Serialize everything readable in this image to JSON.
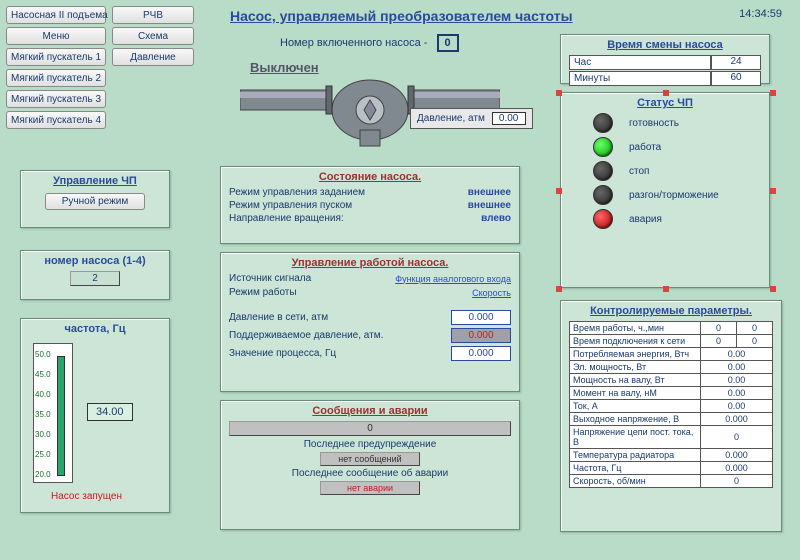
{
  "title": "Насос, управляемый преобразователем частоты",
  "time": "14:34:59",
  "nav1": [
    "Насосная II подъема",
    "Меню",
    "Мягкий пускатель 1",
    "Мягкий пускатель 2",
    "Мягкий пускатель 3",
    "Мягкий пускатель 4"
  ],
  "nav2": [
    "РЧВ",
    "Схема",
    "Давление"
  ],
  "pump_number_label": "Номер включенного насоса -",
  "pump_number": "0",
  "status_word": "Выключен",
  "pressure_label": "Давление, атм",
  "pressure_value": "0.00",
  "ctrl_panel": {
    "title": "Управление ЧП",
    "button": "Ручной режим"
  },
  "num_panel": {
    "title": "номер насоса (1-4)",
    "value": "2"
  },
  "freq_panel": {
    "title": "частота, Гц",
    "ticks": [
      "50.0",
      "45.0",
      "40.0",
      "35.0",
      "30.0",
      "25.0",
      "20.0"
    ],
    "value": "34.00",
    "pump_status": "Насос запущен"
  },
  "state_panel": {
    "title": "Состояние  насоса.",
    "rows": [
      {
        "l": "Режим управления заданием",
        "v": "внешнее"
      },
      {
        "l": "Режим управления пуском",
        "v": "внешнее"
      },
      {
        "l": "Направление вращения:",
        "v": "влево"
      }
    ]
  },
  "work_panel": {
    "title": "Управление работой насоса.",
    "source_l": "Источник сигнала",
    "source_link": "Функция аналогового входа",
    "mode_l": "Режим работы",
    "mode_link": "Скорость",
    "rows": [
      {
        "l": "Давление в сети, атм",
        "v": "0.000",
        "cls": ""
      },
      {
        "l": "Поддерживаемое давление, атм.",
        "v": "0.000",
        "cls": "red"
      },
      {
        "l": "Значение процесса, Гц",
        "v": "0.000",
        "cls": ""
      }
    ]
  },
  "msg_panel": {
    "title": "Сообщения и аварии",
    "count": "0",
    "last_warn_l": "Последнее предупреждение",
    "no_msg": "нет сообщений",
    "last_alarm_l": "Последнее сообщение об аварии",
    "no_alarm": "нет аварии"
  },
  "time_panel": {
    "title": "Время смены насоса",
    "rows": [
      {
        "l": "Час",
        "v": "24"
      },
      {
        "l": "Минуты",
        "v": "60"
      }
    ]
  },
  "status_panel": {
    "title": "Статус ЧП",
    "items": [
      {
        "label": "готовность",
        "color": ""
      },
      {
        "label": "работа",
        "color": "green"
      },
      {
        "label": "стоп",
        "color": ""
      },
      {
        "label": "разгон/торможение",
        "color": ""
      },
      {
        "label": "авария",
        "color": "red2"
      }
    ]
  },
  "params_panel": {
    "title": "Контролируемые параметры.",
    "rows2": [
      {
        "l": "Время работы, ч.,мин",
        "v1": "0",
        "v2": "0"
      },
      {
        "l": "Время подключения к сети",
        "v1": "0",
        "v2": "0"
      }
    ],
    "rows1": [
      {
        "l": "Потребляемая энергия, Втч",
        "v": "0.00"
      },
      {
        "l": "Эл. мощность, Вт",
        "v": "0.00"
      },
      {
        "l": "Мощность на валу, Вт",
        "v": "0.00"
      },
      {
        "l": "Момент на валу, нМ",
        "v": "0.00"
      },
      {
        "l": "Ток, А",
        "v": "0.00"
      },
      {
        "l": "Выходное напряжение, В",
        "v": "0.000"
      },
      {
        "l": "Напряжение цепи пост. тока, В",
        "v": "0"
      },
      {
        "l": "Температура радиатора",
        "v": "0.000"
      },
      {
        "l": "Частота, Гц",
        "v": "0.000"
      },
      {
        "l": "Скорость, об/мин",
        "v": "0"
      }
    ]
  },
  "colors": {
    "bg": "#b8dcc8",
    "panel": "#cce5d6",
    "accent": "#1a3a6e"
  }
}
